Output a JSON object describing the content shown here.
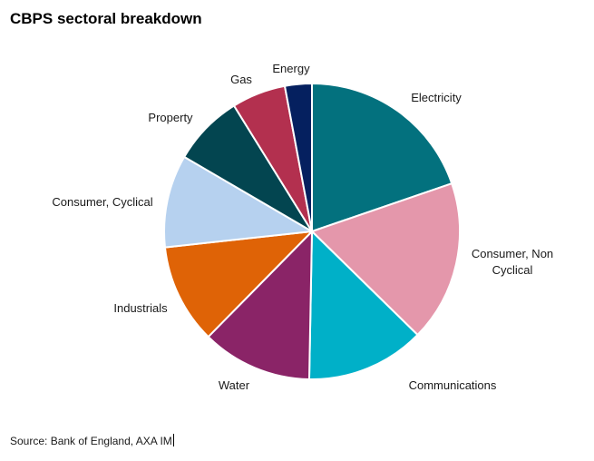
{
  "chart_data": {
    "type": "pie",
    "title": "CBPS sectoral breakdown",
    "slices": [
      {
        "label": "Electricity",
        "lines": [
          "Electricity"
        ],
        "value": 20.1,
        "color": "#03717e"
      },
      {
        "label": "Consumer, Non Cyclical",
        "lines": [
          "Consumer, Non",
          "Cyclical"
        ],
        "value": 17.9,
        "color": "#e497ab"
      },
      {
        "label": "Communications",
        "lines": [
          "Communications"
        ],
        "value": 13.2,
        "color": "#00b0c8"
      },
      {
        "label": "Water",
        "lines": [
          "Water"
        ],
        "value": 12.3,
        "color": "#8a2467"
      },
      {
        "label": "Industrials",
        "lines": [
          "Industrials"
        ],
        "value": 11.1,
        "color": "#df6306"
      },
      {
        "label": "Consumer, Cyclical",
        "lines": [
          "Consumer, Cyclical"
        ],
        "value": 10.3,
        "color": "#b6d1ef"
      },
      {
        "label": "Property",
        "lines": [
          "Property"
        ],
        "value": 7.9,
        "color": "#034550"
      },
      {
        "label": "Gas",
        "lines": [
          "Gas"
        ],
        "value": 6.0,
        "color": "#b3304f"
      },
      {
        "label": "Energy",
        "lines": [
          "Energy"
        ],
        "value": 3.0,
        "color": "#05205f"
      }
    ]
  },
  "source": "Source: Bank of England, AXA IM"
}
